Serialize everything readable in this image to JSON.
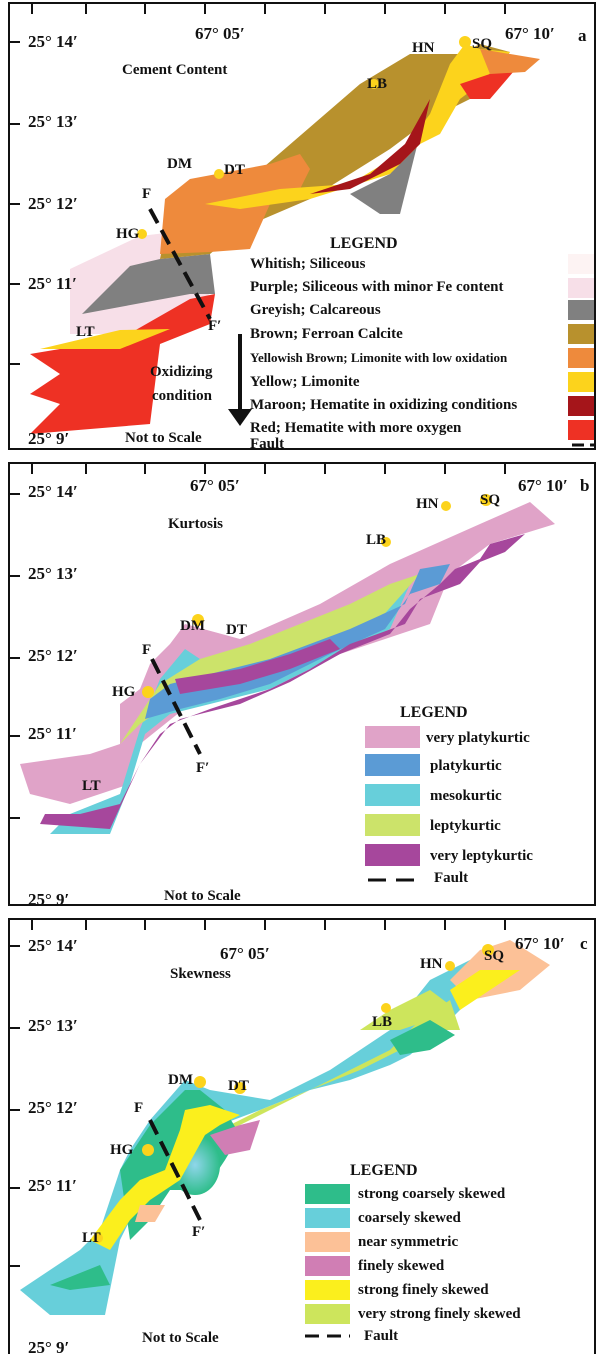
{
  "coords": {
    "lat_top": "25° 14′",
    "lat_13": "25° 13′",
    "lat_12": "25° 12′",
    "lat_11": "25° 11′",
    "lat_bot": "25° 9′",
    "lon_mid": "67° 05′",
    "lon_right": "67° 10′"
  },
  "sites": {
    "HN": "HN",
    "SQ": "SQ",
    "LB": "LB",
    "DM": "DM",
    "DT": "DT",
    "HG": "HG",
    "LT": "LT",
    "F": "F",
    "F_prime": "F′"
  },
  "not_to_scale": "Not to Scale",
  "legend_title": "LEGEND",
  "panel_a": {
    "letter": "a",
    "title": "Cement Content",
    "oxidizing": "Oxidizing",
    "condition": "condition",
    "legend": [
      {
        "label": "Whitish; Siliceous",
        "color": "#fdf3f3"
      },
      {
        "label": "Purple; Siliceous with minor Fe content",
        "color": "#f7dfe8"
      },
      {
        "label": "Greyish; Calcareous",
        "color": "#808080"
      },
      {
        "label": "Brown; Ferroan Calcite",
        "color": "#b8912d"
      },
      {
        "label": "Yellowish Brown; Limonite with low oxidation",
        "color": "#ee8a3c"
      },
      {
        "label": "Yellow; Limonite",
        "color": "#fcd31c"
      },
      {
        "label": "Maroon; Hematite in oxidizing conditions",
        "color": "#a5151a"
      },
      {
        "label": "Red; Hematite with more oxygen",
        "color": "#ee3124"
      }
    ],
    "fault_label": "Fault"
  },
  "panel_b": {
    "letter": "b",
    "title": "Kurtosis",
    "legend": [
      {
        "label": "very platykurtic",
        "color": "#e0a3c8"
      },
      {
        "label": "platykurtic",
        "color": "#5b9bd5"
      },
      {
        "label": "mesokurtic",
        "color": "#67cfda"
      },
      {
        "label": "leptykurtic",
        "color": "#cce36a"
      },
      {
        "label": "very leptykurtic",
        "color": "#a6479c"
      }
    ],
    "fault_label": "Fault"
  },
  "panel_c": {
    "letter": "c",
    "title": "Skewness",
    "legend": [
      {
        "label": "strong coarsely skewed",
        "color": "#2ebd8a"
      },
      {
        "label": "coarsely skewed",
        "color": "#67cfda"
      },
      {
        "label": "near symmetric",
        "color": "#fcc197"
      },
      {
        "label": "finely skewed",
        "color": "#d07eb4"
      },
      {
        "label": "strong finely skewed",
        "color": "#fbef1d"
      },
      {
        "label": "very strong finely skewed",
        "color": "#cde55c"
      }
    ],
    "fault_label": "Fault"
  }
}
